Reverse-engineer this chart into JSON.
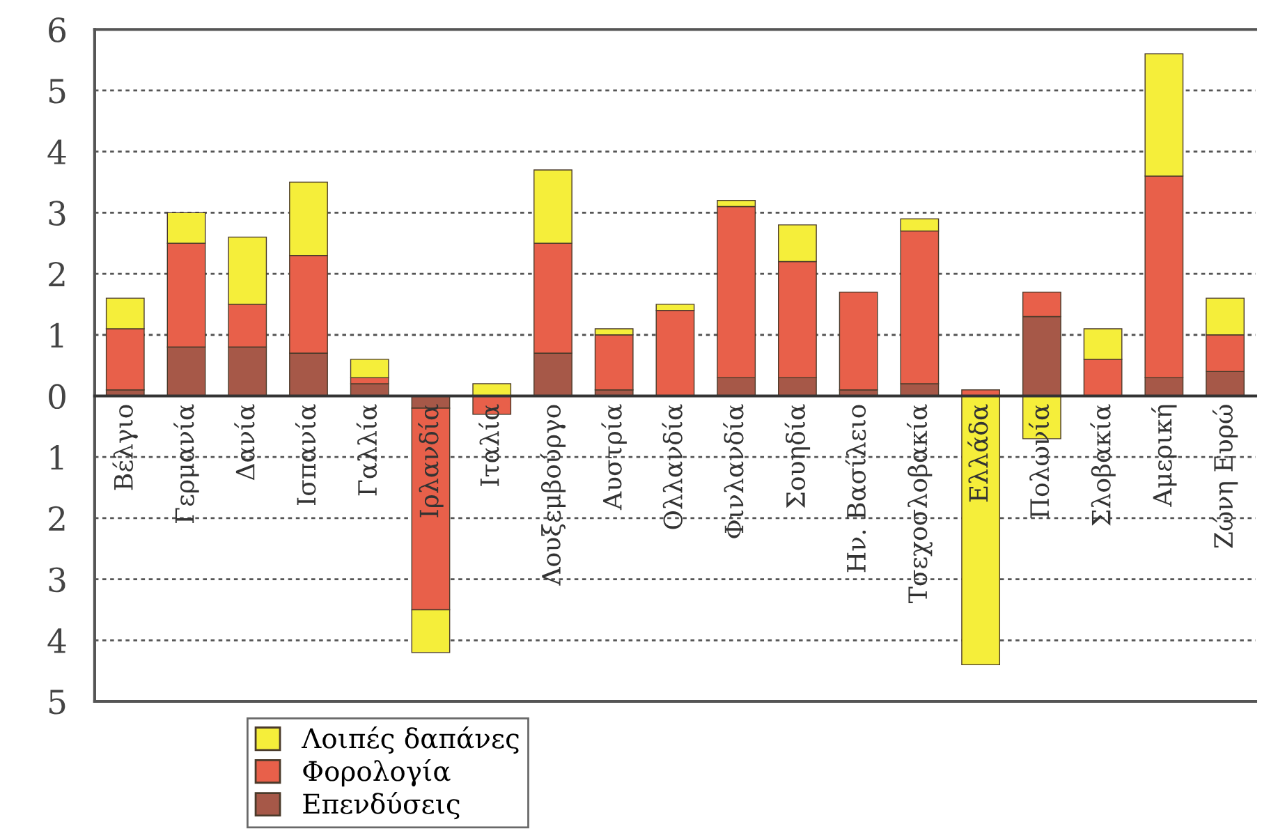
{
  "chart_data": {
    "type": "bar",
    "stacked": true,
    "categories": [
      "Βέλγιο",
      "Γερμανία",
      "Δανία",
      "Ισπανία",
      "Γαλλία",
      "Ιρλανδία",
      "Ιταλία",
      "Λουξεμβούργο",
      "Αυστρία",
      "Ολλανδία",
      "Φινλανδία",
      "Σουηδία",
      "Ην. Βασίλειο",
      "Τσεχοσλοβακία",
      "Ελλάδα",
      "Πολωνία",
      "Σλοβακία",
      "Αμερική",
      "Ζώνη Ευρώ"
    ],
    "series": [
      {
        "name": "Επενδύσεις",
        "color": "#a65848",
        "values": [
          0.1,
          0.8,
          0.8,
          0.7,
          0.2,
          -0.2,
          0,
          0.7,
          0.1,
          0,
          0.3,
          0.3,
          0.1,
          0.2,
          0,
          1.3,
          0,
          0.3,
          0.4
        ]
      },
      {
        "name": "Φορολογία",
        "color": "#e8604a",
        "values": [
          1.0,
          1.7,
          0.7,
          1.6,
          0.1,
          -3.3,
          -0.3,
          1.8,
          0.9,
          1.4,
          2.8,
          1.9,
          1.6,
          2.5,
          0.1,
          0.4,
          0.6,
          3.3,
          0.6
        ]
      },
      {
        "name": "Λοιπές δαπάνες",
        "color": "#f5ee3a",
        "values": [
          0.5,
          0.5,
          1.1,
          1.2,
          0.3,
          -0.7,
          0.2,
          1.2,
          0.1,
          0.1,
          0.1,
          0.6,
          0,
          0.2,
          -4.4,
          -0.7,
          0.5,
          2.0,
          0.6
        ]
      }
    ],
    "ylim": [
      -5,
      6
    ],
    "yticks": [
      {
        "value": -5,
        "label": "5"
      },
      {
        "value": -4,
        "label": "4"
      },
      {
        "value": -3,
        "label": "3"
      },
      {
        "value": -2,
        "label": "2"
      },
      {
        "value": -1,
        "label": "1"
      },
      0,
      1,
      2,
      3,
      4,
      5,
      6
    ],
    "grid": "y",
    "legend": "bottom left"
  }
}
